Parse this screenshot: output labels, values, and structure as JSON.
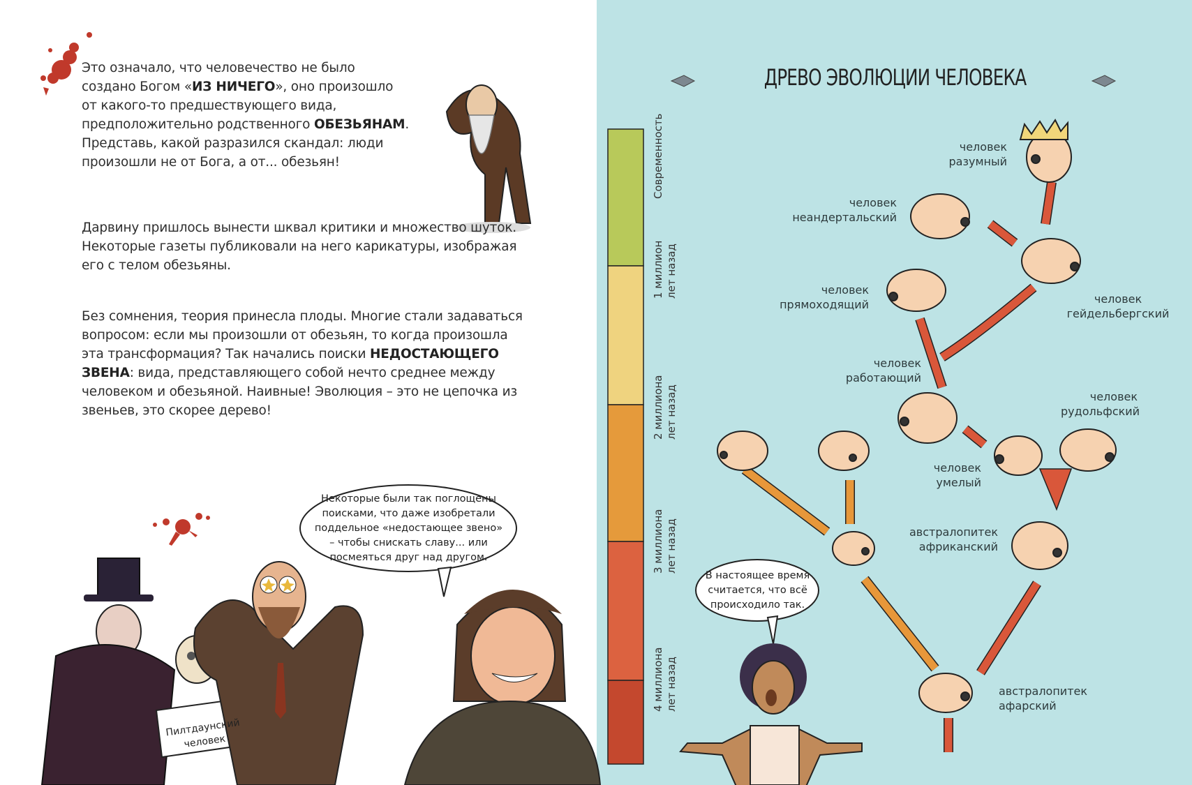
{
  "left_page": {
    "paragraphs": [
      {
        "parts": [
          "Это означало, что человечество не было создано Богом «",
          "ИЗ НИЧЕГО",
          "», оно произошло от какого-то предшествующего вида, предположительно родственного ",
          "ОБЕЗЬЯНАМ",
          ". Представь, какой разразился скандал: люди произошли не от Бога, а от... обезьян!"
        ]
      },
      {
        "parts": [
          "Дарвину пришлось вынести шквал критики и множество шуток. Некоторые газеты публиковали на него карикатуры, изображая его с телом обезьяны."
        ]
      },
      {
        "parts": [
          "Без сомнения, теория принесла плоды. Многие стали задаваться вопросом: если мы произошли от обезьян, то когда произошла эта трансформация? Так начались поиски ",
          "НЕДОСТАЮЩЕГО ЗВЕНА",
          ": вида, представляющего собой нечто среднее между человеком и обезьяной. Наивные! Эволюция – это не цепочка из звеньев, это скорее дерево!"
        ]
      }
    ],
    "speech_bubble": "Некоторые были так поглощены поисками, что даже изобретали поддельное «недостающее звено» – чтобы снискать славу... или посмеяться друг над другом.",
    "sign_text": "Пилтдаунский человек"
  },
  "right_page": {
    "title": "ДРЕВО ЭВОЛЮЦИИ ЧЕЛОВЕКА",
    "timeline": [
      {
        "label": "Современность",
        "color": "#b8c95a"
      },
      {
        "label": "1 миллион лет назад",
        "color": "#efd37f"
      },
      {
        "label": "2 миллиона лет назад",
        "color": "#e59a3b"
      },
      {
        "label": "3 миллиона лет назад",
        "color": "#dc6240"
      },
      {
        "label": "4 миллиона лет назад",
        "color": "#c4482e"
      }
    ],
    "species": {
      "sapiens": "человек разумный",
      "neanderthal": "человек неандертальский",
      "erectus": "человек прямоходящий",
      "heidelberg": "человек гейдельбергский",
      "ergaster": "человек работающий",
      "rudolfensis": "человек рудольфский",
      "habilis": "человек умелый",
      "africanus": "австралопитек африканский",
      "afarensis": "австралопитек афарский"
    },
    "speech_bubble": "В настоящее время считается, что всё происходило так.",
    "colors": {
      "background": "#bde3e5",
      "branch_red": "#d9573a",
      "branch_orange": "#e7973a",
      "skull": "#f6d2b0"
    }
  }
}
